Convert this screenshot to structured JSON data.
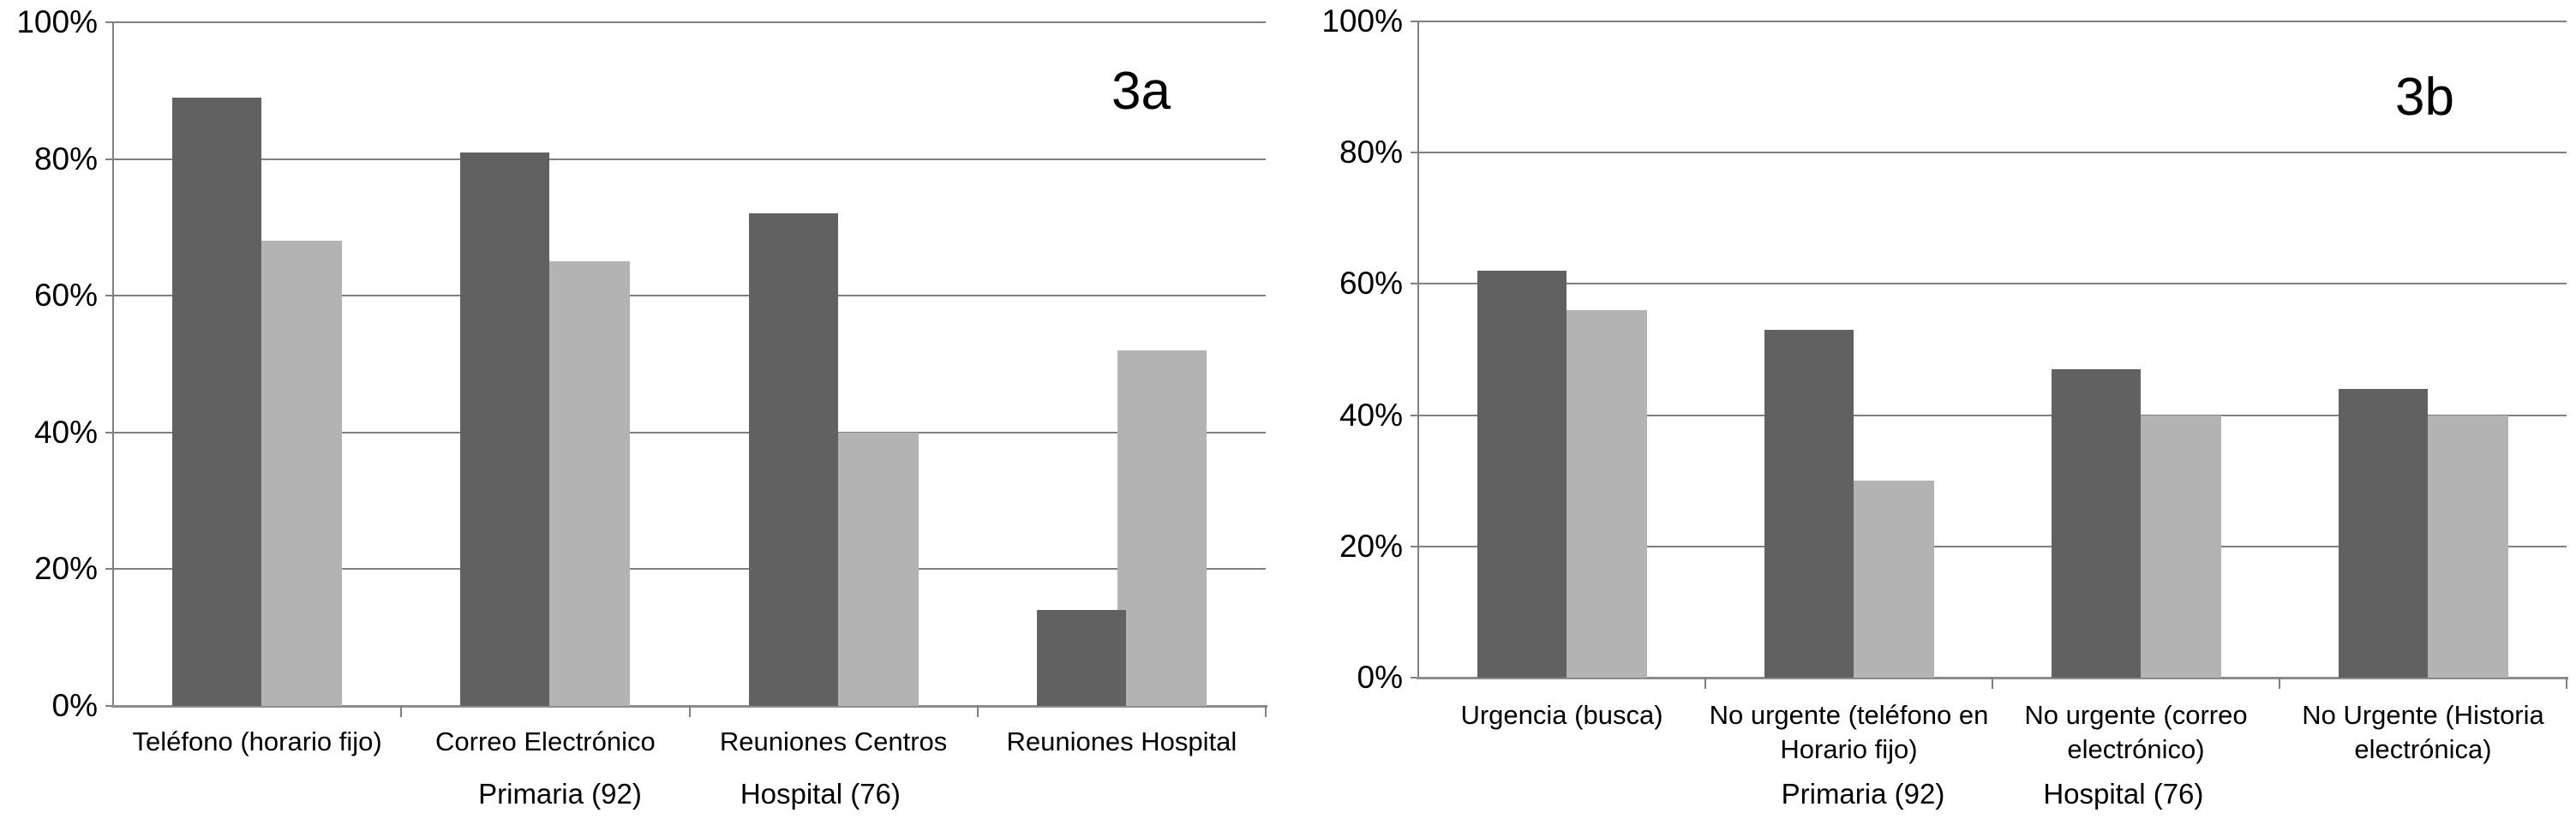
{
  "figure_tags": {
    "left": "3a",
    "right": "3b"
  },
  "chart_data": [
    {
      "tag": "3a",
      "type": "bar",
      "categories": [
        "Teléfono (horario fijo)",
        "Correo Electrónico",
        "Reuniones Centros",
        "Reuniones Hospital"
      ],
      "series": [
        {
          "name": "Primaria (92)",
          "color": "#616161",
          "values": [
            89,
            81,
            72,
            14
          ]
        },
        {
          "name": "Hospital (76)",
          "color": "#b3b3b3",
          "values": [
            68,
            65,
            40,
            52
          ]
        }
      ],
      "legend": [
        "Primaria (92)",
        "Hospital (76)"
      ],
      "legend_position": "bottom",
      "ylim": [
        0,
        100
      ],
      "ytick_values": [
        0,
        20,
        40,
        60,
        80,
        100
      ],
      "ytick_labels": [
        "0%",
        "20%",
        "40%",
        "60%",
        "80%",
        "100%"
      ],
      "grid": true,
      "title": "",
      "xlabel": "",
      "ylabel": ""
    },
    {
      "tag": "3b",
      "type": "bar",
      "categories": [
        "Urgencia (busca)",
        "No urgente (teléfono en Horario fijo)",
        "No urgente (correo electrónico)",
        "No Urgente (Historia electrónica)"
      ],
      "series": [
        {
          "name": "Primaria (92)",
          "color": "#616161",
          "values": [
            62,
            53,
            47,
            44
          ]
        },
        {
          "name": "Hospital (76)",
          "color": "#b3b3b3",
          "values": [
            56,
            30,
            40,
            40
          ]
        }
      ],
      "legend": [
        "Primaria (92)",
        "Hospital (76)"
      ],
      "legend_position": "bottom",
      "ylim": [
        0,
        100
      ],
      "ytick_values": [
        0,
        20,
        40,
        60,
        80,
        100
      ],
      "ytick_labels": [
        "0%",
        "20%",
        "40%",
        "60%",
        "80%",
        "100%"
      ],
      "grid": true,
      "title": "",
      "xlabel": "",
      "ylabel": ""
    }
  ]
}
